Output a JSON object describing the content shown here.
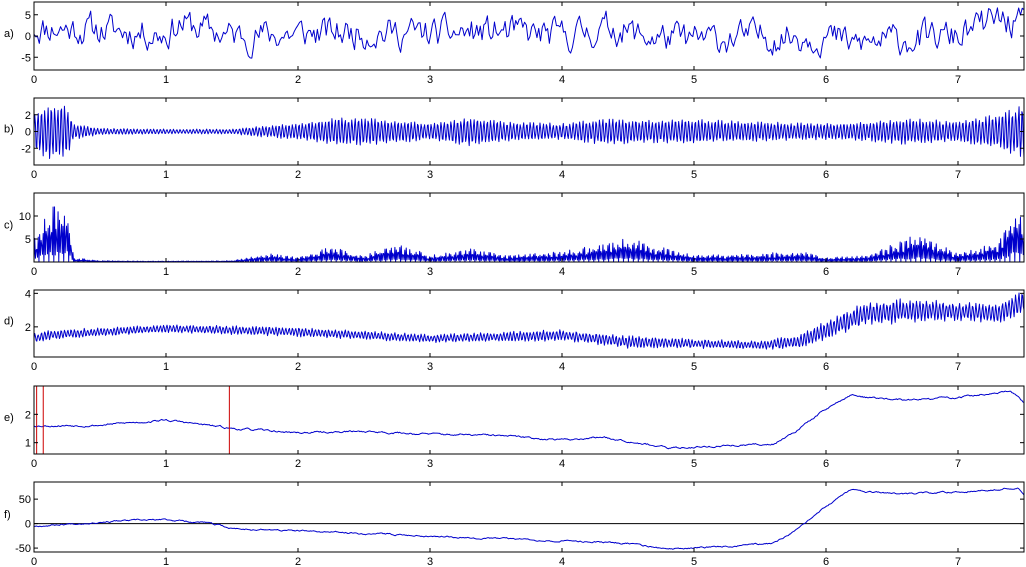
{
  "chart_data": [
    {
      "type": "line",
      "panel_label": "a)",
      "xlim": [
        0,
        7.5
      ],
      "ylim": [
        -8,
        8
      ],
      "xticks": [
        "0",
        "1",
        "2",
        "3",
        "4",
        "5",
        "6",
        "7"
      ],
      "yticks": [
        {
          "value": -5,
          "label": "-5"
        },
        {
          "value": 0,
          "label": "0"
        },
        {
          "value": 5,
          "label": "5"
        }
      ],
      "color": "#0000cc",
      "series": [
        {
          "style": "noise",
          "points": 560,
          "amp": 3.0,
          "seed": 11
        }
      ],
      "anchors": {
        "x": [
          0,
          0.5,
          1.0,
          1.1,
          1.5,
          2.0,
          2.5,
          3.0,
          3.5,
          4.0,
          4.4,
          4.6,
          5.0,
          5.5,
          6.0,
          6.2,
          6.5,
          7.0,
          7.3,
          7.5
        ],
        "y": [
          2,
          1.5,
          0.5,
          3,
          0,
          0.5,
          1,
          0.5,
          1,
          0,
          2,
          0,
          -1,
          0,
          0,
          -2,
          -1,
          0,
          4,
          2
        ]
      }
    },
    {
      "type": "line",
      "panel_label": "b)",
      "xlim": [
        0,
        7.5
      ],
      "ylim": [
        -4,
        4
      ],
      "xticks": [
        "0",
        "1",
        "2",
        "3",
        "4",
        "5",
        "6",
        "7"
      ],
      "yticks": [
        {
          "value": -2,
          "label": "-2"
        },
        {
          "value": 0,
          "label": "0"
        },
        {
          "value": 2,
          "label": "2"
        }
      ],
      "color": "#0000cc",
      "series": [
        {
          "style": "oscillation",
          "points": 1400,
          "cycles": 300,
          "seed": 23
        }
      ],
      "envelope": {
        "x": [
          0,
          0.1,
          0.25,
          0.3,
          0.5,
          1.0,
          1.5,
          1.8,
          2.0,
          2.3,
          2.7,
          3.0,
          3.3,
          3.6,
          4.0,
          4.3,
          4.7,
          5.0,
          5.5,
          6.0,
          6.3,
          6.6,
          7.0,
          7.3,
          7.5
        ],
        "y": [
          2.5,
          3.5,
          3.5,
          1,
          0.4,
          0.3,
          0.3,
          0.8,
          1.0,
          1.8,
          1.5,
          1.0,
          1.8,
          1.2,
          1.0,
          1.6,
          1.4,
          1.5,
          1.2,
          1.0,
          1.2,
          1.6,
          1.3,
          2.2,
          3.5
        ]
      }
    },
    {
      "type": "line",
      "panel_label": "c)",
      "xlim": [
        0,
        7.5
      ],
      "ylim": [
        0,
        15
      ],
      "xticks": [
        "0",
        "1",
        "2",
        "3",
        "4",
        "5",
        "6",
        "7"
      ],
      "yticks": [
        {
          "value": 5,
          "label": "5"
        },
        {
          "value": 10,
          "label": "10"
        }
      ],
      "color": "#0000cc",
      "series": [
        {
          "style": "spiky",
          "points": 1400,
          "cycles": 300,
          "seed": 37
        }
      ],
      "envelope": {
        "x": [
          0,
          0.1,
          0.25,
          0.3,
          0.5,
          1.0,
          1.5,
          1.8,
          2.0,
          2.25,
          2.5,
          2.75,
          3.0,
          3.3,
          3.6,
          4.0,
          4.3,
          4.5,
          5.0,
          5.5,
          5.8,
          6.0,
          6.3,
          6.7,
          7.0,
          7.3,
          7.45,
          7.5
        ],
        "y": [
          6,
          12,
          14,
          1,
          0.3,
          0.2,
          0.3,
          2.0,
          1.0,
          3.5,
          1.5,
          4.5,
          1.5,
          3.0,
          1.5,
          2.5,
          4.0,
          5.5,
          1.5,
          2.0,
          2.5,
          1.0,
          1.5,
          6.5,
          2.0,
          4.5,
          14,
          11
        ]
      }
    },
    {
      "type": "line",
      "panel_label": "d)",
      "xlim": [
        0,
        7.5
      ],
      "ylim": [
        0.2,
        4.2
      ],
      "xticks": [
        "0",
        "1",
        "2",
        "3",
        "4",
        "5",
        "6",
        "7"
      ],
      "yticks": [
        {
          "value": 2,
          "label": "2"
        },
        {
          "value": 4,
          "label": "4"
        }
      ],
      "color": "#0000cc",
      "series": [
        {
          "style": "trend-oscillation",
          "points": 1400,
          "cycles": 300,
          "seed": 41
        }
      ],
      "anchors": {
        "x": [
          0,
          0.1,
          0.3,
          1.0,
          1.5,
          2.0,
          3.0,
          4.0,
          4.5,
          5.0,
          5.5,
          5.8,
          6.0,
          6.3,
          6.7,
          7.0,
          7.3,
          7.5
        ],
        "y": [
          1.3,
          1.5,
          1.6,
          1.9,
          1.8,
          1.7,
          1.3,
          1.5,
          1.1,
          1.0,
          0.9,
          1.1,
          1.8,
          2.8,
          3.0,
          2.9,
          2.8,
          3.5
        ]
      },
      "swing": {
        "x": [
          0,
          1.0,
          2.0,
          3.0,
          4.0,
          4.5,
          5.0,
          5.5,
          6.0,
          6.5,
          7.0,
          7.5
        ],
        "y": [
          0.3,
          0.25,
          0.3,
          0.25,
          0.35,
          0.4,
          0.3,
          0.25,
          0.6,
          0.8,
          0.6,
          0.7
        ]
      }
    },
    {
      "type": "line",
      "panel_label": "e)",
      "xlim": [
        0,
        7.5
      ],
      "ylim": [
        0.6,
        3.0
      ],
      "xticks": [
        "0",
        "1",
        "2",
        "3",
        "4",
        "5",
        "6",
        "7"
      ],
      "yticks": [
        {
          "value": 1,
          "label": "1"
        },
        {
          "value": 2,
          "label": "2"
        }
      ],
      "color": "#0000cc",
      "marker_color": "#cc0000",
      "markers": [
        0.02,
        0.07,
        1.48
      ],
      "series": [
        {
          "style": "smooth",
          "points": 900,
          "amp": 0.025,
          "seed": 53
        }
      ],
      "anchors": {
        "x": [
          0,
          0.5,
          1.0,
          1.5,
          2.0,
          2.5,
          3.0,
          3.5,
          4.0,
          4.3,
          4.6,
          4.8,
          5.0,
          5.3,
          5.6,
          5.8,
          6.0,
          6.2,
          6.3,
          6.6,
          7.0,
          7.4,
          7.5
        ],
        "y": [
          1.6,
          1.62,
          1.8,
          1.5,
          1.35,
          1.4,
          1.3,
          1.25,
          1.1,
          1.2,
          1.0,
          0.8,
          0.85,
          0.9,
          0.95,
          1.5,
          2.2,
          2.7,
          2.6,
          2.5,
          2.6,
          2.8,
          2.4
        ]
      }
    },
    {
      "type": "line",
      "panel_label": "f)",
      "xlim": [
        0,
        7.5
      ],
      "ylim": [
        -58,
        85
      ],
      "xticks": [
        "0",
        "1",
        "2",
        "3",
        "4",
        "5",
        "6",
        "7"
      ],
      "yticks": [
        {
          "value": -50,
          "label": "-50"
        },
        {
          "value": 0,
          "label": "0"
        },
        {
          "value": 50,
          "label": "50"
        }
      ],
      "baseline": 0,
      "color": "#0000cc",
      "series": [
        {
          "style": "smooth",
          "points": 900,
          "amp": 1.2,
          "seed": 67
        }
      ],
      "anchors": {
        "x": [
          0,
          0.3,
          0.6,
          1.0,
          1.3,
          1.5,
          2.0,
          2.5,
          3.0,
          3.5,
          4.0,
          4.5,
          4.8,
          5.0,
          5.3,
          5.6,
          5.8,
          6.0,
          6.2,
          6.3,
          6.6,
          7.0,
          7.3,
          7.45,
          7.5
        ],
        "y": [
          -5,
          0,
          5,
          8,
          2,
          -10,
          -15,
          -20,
          -25,
          -30,
          -35,
          -40,
          -53,
          -50,
          -45,
          -40,
          -10,
          35,
          70,
          65,
          60,
          65,
          70,
          75,
          60
        ]
      }
    }
  ]
}
